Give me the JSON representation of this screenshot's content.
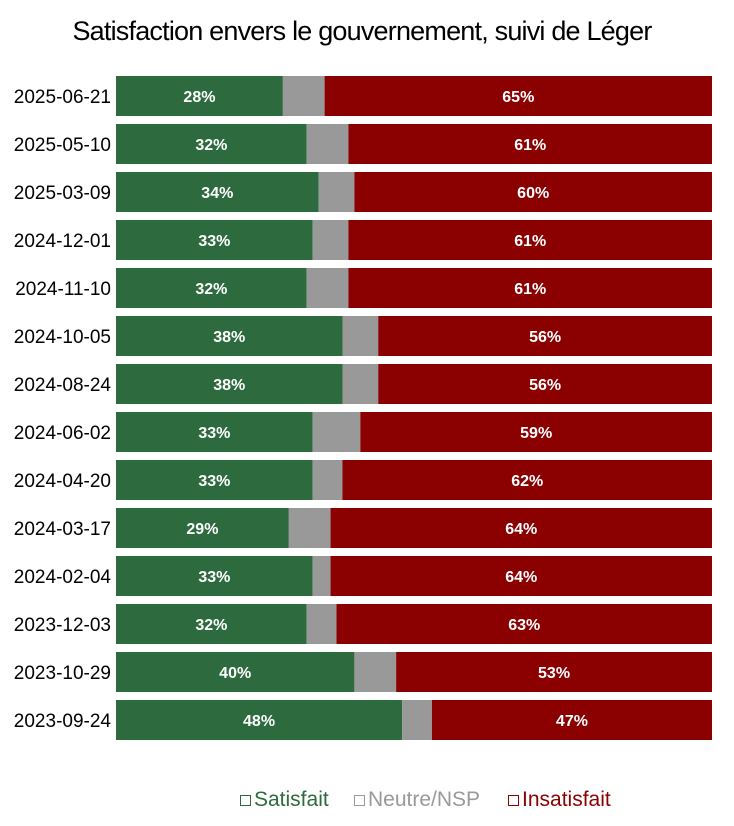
{
  "chart_data": {
    "type": "bar",
    "orientation": "horizontal",
    "stacked": true,
    "normalized": true,
    "title": "Satisfaction envers le gouvernement, suivi de Léger",
    "categories": [
      "2025-06-21",
      "2025-05-10",
      "2025-03-09",
      "2024-12-01",
      "2024-11-10",
      "2024-10-05",
      "2024-08-24",
      "2024-06-02",
      "2024-04-20",
      "2024-03-17",
      "2024-02-04",
      "2023-12-03",
      "2023-10-29",
      "2023-09-24"
    ],
    "series": [
      {
        "name": "Satisfait",
        "color": "#2d6a3e",
        "values": [
          28,
          32,
          34,
          33,
          32,
          38,
          38,
          33,
          33,
          29,
          33,
          32,
          40,
          48
        ]
      },
      {
        "name": "Neutre/NSP",
        "color": "#999999",
        "values": [
          7,
          7,
          6,
          6,
          7,
          6,
          6,
          8,
          5,
          7,
          3,
          5,
          7,
          5
        ]
      },
      {
        "name": "Insatisfait",
        "color": "#8b0000",
        "values": [
          65,
          61,
          60,
          61,
          61,
          56,
          56,
          59,
          62,
          64,
          64,
          63,
          53,
          47
        ]
      }
    ],
    "data_labels": {
      "Satisfait": [
        "28%",
        "32%",
        "34%",
        "33%",
        "32%",
        "38%",
        "38%",
        "33%",
        "33%",
        "29%",
        "33%",
        "32%",
        "40%",
        "48%"
      ],
      "Insatisfait": [
        "65%",
        "61%",
        "60%",
        "61%",
        "61%",
        "56%",
        "56%",
        "59%",
        "62%",
        "64%",
        "64%",
        "63%",
        "53%",
        "47%"
      ]
    },
    "xlim": [
      0,
      100
    ],
    "grid": false,
    "legend_position": "bottom"
  }
}
